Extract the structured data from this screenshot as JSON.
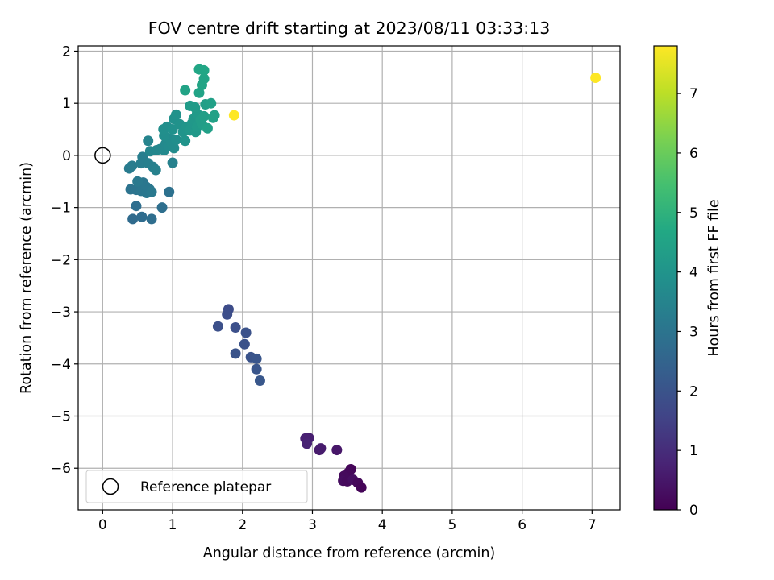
{
  "chart_data": {
    "type": "scatter",
    "title": "FOV centre drift starting at 2023/08/11 03:33:13",
    "xlabel": "Angular distance from reference (arcmin)",
    "ylabel": "Rotation from reference (arcmin)",
    "xlim": [
      -0.35,
      7.4
    ],
    "ylim": [
      -6.8,
      2.1
    ],
    "x_ticks": [
      0,
      1,
      2,
      3,
      4,
      5,
      6,
      7
    ],
    "x_tick_labels": [
      "0",
      "1",
      "2",
      "3",
      "4",
      "5",
      "6",
      "7"
    ],
    "y_ticks": [
      2,
      1,
      0,
      -1,
      -2,
      -3,
      -4,
      -5,
      -6
    ],
    "y_tick_labels": [
      "2",
      "1",
      "0",
      "−1",
      "−2",
      "−3",
      "−4",
      "−5",
      "−6"
    ],
    "grid": true,
    "legend": {
      "position": "lower-left",
      "entries": [
        {
          "label": "Reference platepar",
          "marker": "open-circle"
        }
      ]
    },
    "reference_point": {
      "x": 0,
      "y": 0
    },
    "colorbar": {
      "label": "Hours from first FF file",
      "range": [
        0,
        7.8
      ],
      "ticks": [
        0,
        1,
        2,
        3,
        4,
        5,
        6,
        7
      ],
      "tick_labels": [
        "0",
        "1",
        "2",
        "3",
        "4",
        "5",
        "6",
        "7"
      ],
      "colormap": "viridis"
    },
    "points": [
      [
        3.55,
        -6.02,
        0.1
      ],
      [
        3.52,
        -6.08,
        0.15
      ],
      [
        3.45,
        -6.15,
        0.2
      ],
      [
        3.44,
        -6.24,
        0.25
      ],
      [
        3.5,
        -6.25,
        0.2
      ],
      [
        3.58,
        -6.22,
        0.3
      ],
      [
        3.65,
        -6.28,
        0.15
      ],
      [
        3.7,
        -6.37,
        0.1
      ],
      [
        3.35,
        -5.65,
        0.5
      ],
      [
        3.1,
        -5.65,
        0.55
      ],
      [
        3.12,
        -5.62,
        0.6
      ],
      [
        2.95,
        -5.42,
        0.65
      ],
      [
        2.9,
        -5.43,
        0.7
      ],
      [
        2.92,
        -5.53,
        0.75
      ],
      [
        1.8,
        -2.95,
        1.8
      ],
      [
        1.78,
        -3.05,
        1.85
      ],
      [
        1.65,
        -3.28,
        1.9
      ],
      [
        1.9,
        -3.3,
        1.9
      ],
      [
        2.05,
        -3.4,
        1.95
      ],
      [
        2.03,
        -3.62,
        1.95
      ],
      [
        1.9,
        -3.8,
        2.0
      ],
      [
        2.12,
        -3.87,
        2.0
      ],
      [
        2.2,
        -3.9,
        2.05
      ],
      [
        2.2,
        -4.1,
        2.05
      ],
      [
        2.25,
        -4.32,
        2.1
      ],
      [
        0.43,
        -1.22,
        2.7
      ],
      [
        0.56,
        -1.18,
        2.75
      ],
      [
        0.7,
        -1.22,
        2.8
      ],
      [
        0.48,
        -0.97,
        2.8
      ],
      [
        0.85,
        -1.0,
        2.85
      ],
      [
        0.95,
        -0.7,
        2.9
      ],
      [
        0.4,
        -0.65,
        2.95
      ],
      [
        0.48,
        -0.66,
        3.0
      ],
      [
        0.52,
        -0.55,
        3.0
      ],
      [
        0.55,
        -0.68,
        3.05
      ],
      [
        0.58,
        -0.52,
        3.05
      ],
      [
        0.62,
        -0.6,
        3.1
      ],
      [
        0.63,
        -0.72,
        3.1
      ],
      [
        0.67,
        -0.65,
        3.1
      ],
      [
        0.7,
        -0.7,
        3.15
      ],
      [
        0.5,
        -0.5,
        3.15
      ],
      [
        0.38,
        -0.25,
        3.2
      ],
      [
        0.42,
        -0.2,
        3.25
      ],
      [
        0.55,
        -0.15,
        3.3
      ],
      [
        0.57,
        -0.03,
        3.3
      ],
      [
        0.65,
        -0.15,
        3.35
      ],
      [
        0.72,
        -0.22,
        3.35
      ],
      [
        0.76,
        -0.28,
        3.4
      ],
      [
        1.0,
        -0.14,
        3.4
      ],
      [
        0.65,
        0.28,
        3.5
      ],
      [
        0.68,
        0.08,
        3.55
      ],
      [
        0.77,
        0.1,
        3.6
      ],
      [
        0.82,
        0.12,
        3.6
      ],
      [
        0.88,
        0.1,
        3.65
      ],
      [
        0.9,
        0.22,
        3.65
      ],
      [
        0.94,
        0.18,
        3.7
      ],
      [
        0.95,
        0.32,
        3.7
      ],
      [
        0.98,
        0.25,
        3.75
      ],
      [
        1.02,
        0.14,
        3.75
      ],
      [
        1.05,
        0.3,
        3.8
      ],
      [
        0.88,
        0.38,
        3.8
      ],
      [
        0.87,
        0.5,
        3.85
      ],
      [
        0.92,
        0.55,
        3.85
      ],
      [
        1.0,
        0.5,
        3.9
      ],
      [
        1.02,
        0.7,
        3.9
      ],
      [
        1.05,
        0.78,
        3.95
      ],
      [
        1.1,
        0.6,
        3.95
      ],
      [
        1.15,
        0.45,
        4.0
      ],
      [
        1.18,
        0.28,
        4.0
      ],
      [
        1.2,
        0.55,
        4.05
      ],
      [
        1.25,
        0.48,
        4.1
      ],
      [
        1.28,
        0.62,
        4.1
      ],
      [
        1.3,
        0.7,
        4.15
      ],
      [
        1.33,
        0.45,
        4.15
      ],
      [
        1.35,
        0.55,
        4.2
      ],
      [
        1.35,
        0.8,
        4.2
      ],
      [
        1.25,
        0.95,
        4.25
      ],
      [
        1.32,
        0.92,
        4.25
      ],
      [
        1.4,
        0.68,
        4.3
      ],
      [
        1.42,
        0.6,
        4.3
      ],
      [
        1.45,
        0.75,
        4.35
      ],
      [
        1.47,
        0.98,
        4.35
      ],
      [
        1.5,
        0.52,
        4.4
      ],
      [
        1.55,
        1.0,
        4.4
      ],
      [
        1.58,
        0.72,
        4.45
      ],
      [
        1.6,
        0.77,
        4.45
      ],
      [
        1.18,
        1.25,
        4.5
      ],
      [
        1.38,
        1.2,
        4.5
      ],
      [
        1.42,
        1.35,
        4.55
      ],
      [
        1.45,
        1.47,
        4.55
      ],
      [
        1.38,
        1.65,
        4.6
      ],
      [
        1.45,
        1.63,
        4.6
      ],
      [
        1.88,
        0.77,
        7.8
      ],
      [
        7.05,
        1.49,
        7.8
      ]
    ]
  }
}
